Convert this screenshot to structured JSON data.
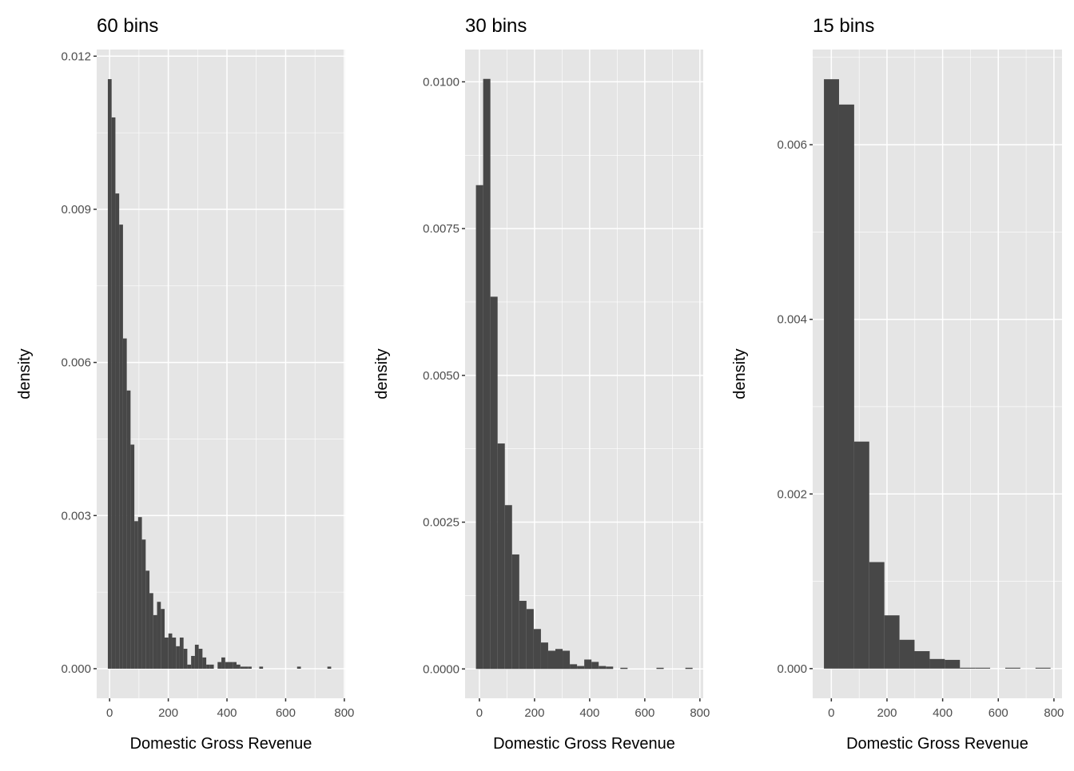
{
  "chart_data": [
    {
      "type": "bar",
      "title": "60 bins",
      "xlabel": "Domestic Gross Revenue",
      "ylabel": "density",
      "bin_start": -6,
      "bin_width": 12.9,
      "values": [
        0.01155,
        0.0108,
        0.00931,
        0.0087,
        0.00647,
        0.00545,
        0.00439,
        0.00289,
        0.00297,
        0.00253,
        0.00192,
        0.00148,
        0.00105,
        0.00131,
        0.00117,
        0.00061,
        0.00069,
        0.00061,
        0.00044,
        0.00061,
        0.00039,
        8e-05,
        0.00025,
        0.00047,
        0.00039,
        0.00022,
        8e-05,
        8e-05,
        0,
        0.00013,
        0.00022,
        0.00013,
        0.00013,
        0.00013,
        8e-05,
        4e-05,
        4e-05,
        4e-05,
        0,
        0,
        4e-05,
        0,
        0,
        0,
        0,
        0,
        0,
        0,
        0,
        0,
        4e-05,
        0,
        0,
        0,
        0,
        0,
        0,
        0,
        4e-05,
        0
      ],
      "xlim": [
        -44,
        803
      ],
      "ylim": [
        -0.00058,
        0.01213
      ],
      "x_ticks": [
        "0",
        "200",
        "400",
        "600",
        "800"
      ],
      "y_ticks": [
        "0.000",
        "0.003",
        "0.006",
        "0.009",
        "0.012"
      ],
      "grid": true
    },
    {
      "type": "bar",
      "title": "30 bins",
      "xlabel": "Domestic Gross Revenue",
      "ylabel": "density",
      "bin_start": -12.6,
      "bin_width": 26.2,
      "values": [
        0.00824,
        0.01005,
        0.00634,
        0.00384,
        0.00279,
        0.00195,
        0.00116,
        0.00102,
        0.00068,
        0.00045,
        0.00031,
        0.00034,
        0.00031,
        8e-05,
        5e-05,
        0.00016,
        0.00012,
        5e-05,
        4e-05,
        0,
        2e-05,
        0,
        0,
        0,
        0,
        2e-05,
        0,
        0,
        0,
        2e-05
      ],
      "xlim": [
        -52,
        812
      ],
      "ylim": [
        -0.0005,
        0.01055
      ],
      "x_ticks": [
        "0",
        "200",
        "400",
        "600",
        "800"
      ],
      "y_ticks": [
        "0.0000",
        "0.0025",
        "0.0050",
        "0.0075",
        "0.0100"
      ],
      "grid": true
    },
    {
      "type": "bar",
      "title": "15 bins",
      "xlabel": "Domestic Gross Revenue",
      "ylabel": "density",
      "bin_start": -26.6,
      "bin_width": 54.3,
      "values": [
        0.00675,
        0.00646,
        0.0026,
        0.00122,
        0.00061,
        0.00033,
        0.0002,
        0.00011,
        0.0001,
        1e-05,
        1e-05,
        0,
        1e-05,
        0,
        1e-05
      ],
      "xlim": [
        -67,
        829
      ],
      "ylim": [
        -0.00034,
        0.00709
      ],
      "x_ticks": [
        "0",
        "200",
        "400",
        "600",
        "800"
      ],
      "y_ticks": [
        "0.000",
        "0.002",
        "0.004",
        "0.006"
      ],
      "grid": true
    }
  ],
  "colors": {
    "panel_bg": "#e5e5e5",
    "bar": "#474747",
    "grid": "#ffffff",
    "tick_text": "#4d4d4d"
  }
}
